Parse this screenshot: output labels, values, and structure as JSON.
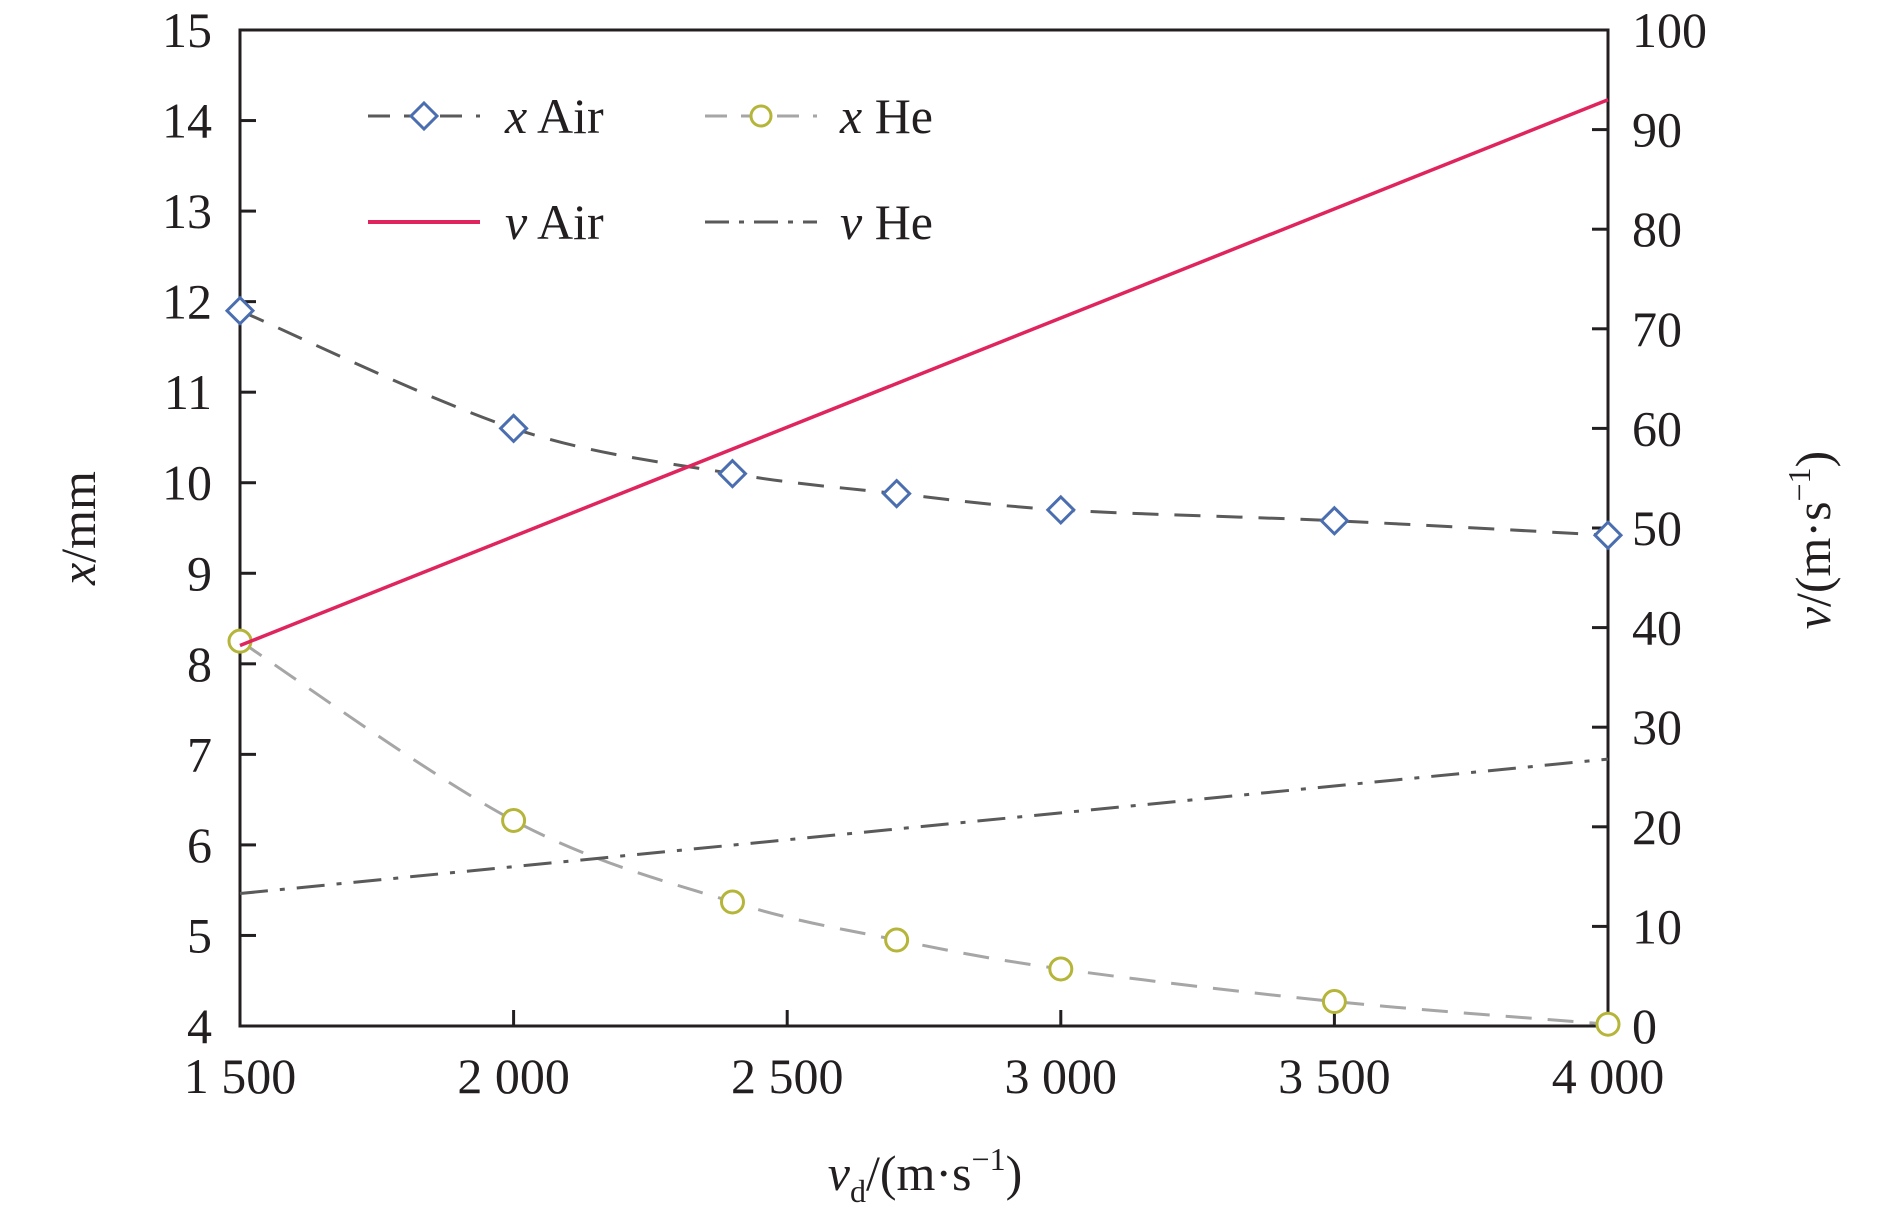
{
  "chart_data": {
    "type": "line",
    "x": [
      1500,
      2000,
      2400,
      2700,
      3000,
      3500,
      4000
    ],
    "xlim": [
      1500,
      4000
    ],
    "x_ticks": [
      1500,
      2000,
      2500,
      3000,
      3500,
      4000
    ],
    "x_tick_labels": [
      "1 500",
      "2 000",
      "2 500",
      "3 000",
      "3 500",
      "4 000"
    ],
    "xlabel": {
      "symbol": "v",
      "subscript": "d",
      "unit": "/(m·s",
      "exponent": "−1",
      "close": ")"
    },
    "ylim_left": [
      4,
      15
    ],
    "y_ticks_left": [
      "4",
      "5",
      "6",
      "7",
      "8",
      "9",
      "10",
      "11",
      "12",
      "13",
      "14",
      "15"
    ],
    "ylabel_left": {
      "symbol": "x",
      "unit": "/mm"
    },
    "ylim_right": [
      0,
      100
    ],
    "y_ticks_right": [
      "0",
      "10",
      "20",
      "30",
      "40",
      "50",
      "60",
      "70",
      "80",
      "90",
      "100"
    ],
    "ylabel_right": {
      "symbol": "v",
      "unit": "/(m·s",
      "exponent": "−1",
      "close": ")"
    },
    "grid": false,
    "legend_position": "top-left",
    "series": [
      {
        "name_symbol": "x",
        "name_gas": "Air",
        "axis": "left",
        "marker": "diamond",
        "style": "dashed",
        "line_color": "#5a5a5a",
        "accent_color": "#2e75b6",
        "marker_color": "#4a6eb0",
        "values": [
          11.9,
          10.6,
          10.1,
          9.88,
          9.7,
          9.58,
          9.42
        ]
      },
      {
        "name_symbol": "x",
        "name_gas": "He",
        "axis": "left",
        "marker": "circle",
        "style": "dashed",
        "line_color": "#a6a6a6",
        "accent_color": "#a6a6a6",
        "marker_color": "#b5b53a",
        "values": [
          8.25,
          6.27,
          5.37,
          4.95,
          4.63,
          4.27,
          4.02
        ]
      },
      {
        "name_symbol": "v",
        "name_gas": "Air",
        "axis": "right",
        "marker": "none",
        "style": "solid",
        "line_color": "#e0245e",
        "x": [
          1500,
          4000
        ],
        "values": [
          38.2,
          93
        ]
      },
      {
        "name_symbol": "v",
        "name_gas": "He",
        "axis": "right",
        "marker": "none",
        "style": "dashdot",
        "line_color": "#5a5a5a",
        "x": [
          1500,
          4000
        ],
        "values": [
          13.3,
          26.8
        ]
      }
    ]
  }
}
